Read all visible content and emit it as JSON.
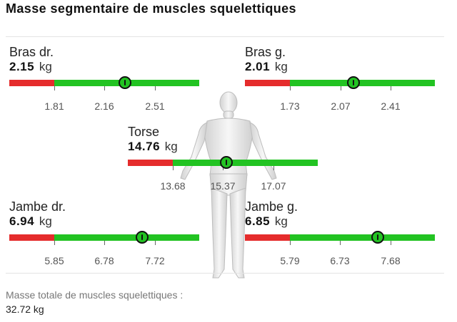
{
  "title": "Masse segmentaire de muscles squelettiques",
  "segments": [
    {
      "name": "Bras dr.",
      "value": "2.15",
      "unit": "kg",
      "ticks": [
        "1.81",
        "2.16",
        "2.51"
      ],
      "level": 0.61
    },
    {
      "name": "Bras g.",
      "value": "2.01",
      "unit": "kg",
      "ticks": [
        "1.73",
        "2.07",
        "2.41"
      ],
      "level": 0.57
    },
    {
      "name": "Torse",
      "value": "14.76",
      "unit": "kg",
      "ticks": [
        "13.68",
        "15.37",
        "17.07"
      ],
      "level": 0.52
    },
    {
      "name": "Jambe dr.",
      "value": "6.94",
      "unit": "kg",
      "ticks": [
        "5.85",
        "6.78",
        "7.72"
      ],
      "level": 0.7
    },
    {
      "name": "Jambe g.",
      "value": "6.85",
      "unit": "kg",
      "ticks": [
        "5.79",
        "6.73",
        "7.68"
      ],
      "level": 0.7
    }
  ],
  "footer": {
    "label": "Masse totale de muscles squelettiques :",
    "value": "32.72 kg"
  },
  "colors": {
    "low": "#e52c2c",
    "normal": "#22c322"
  }
}
